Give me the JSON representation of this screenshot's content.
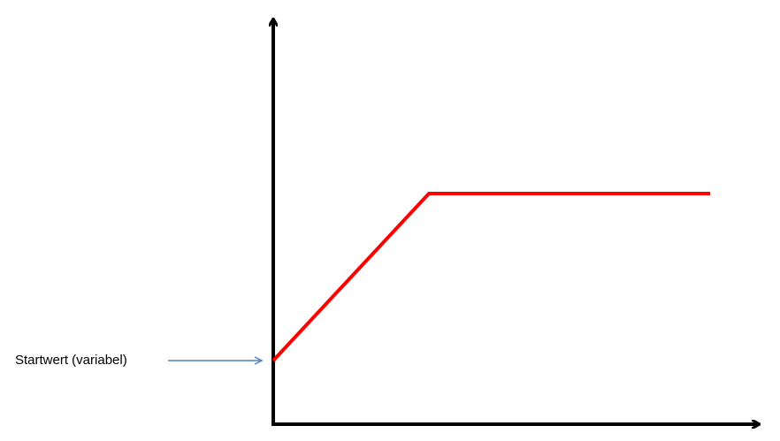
{
  "annotation": "Startwert (variabel)"
}
